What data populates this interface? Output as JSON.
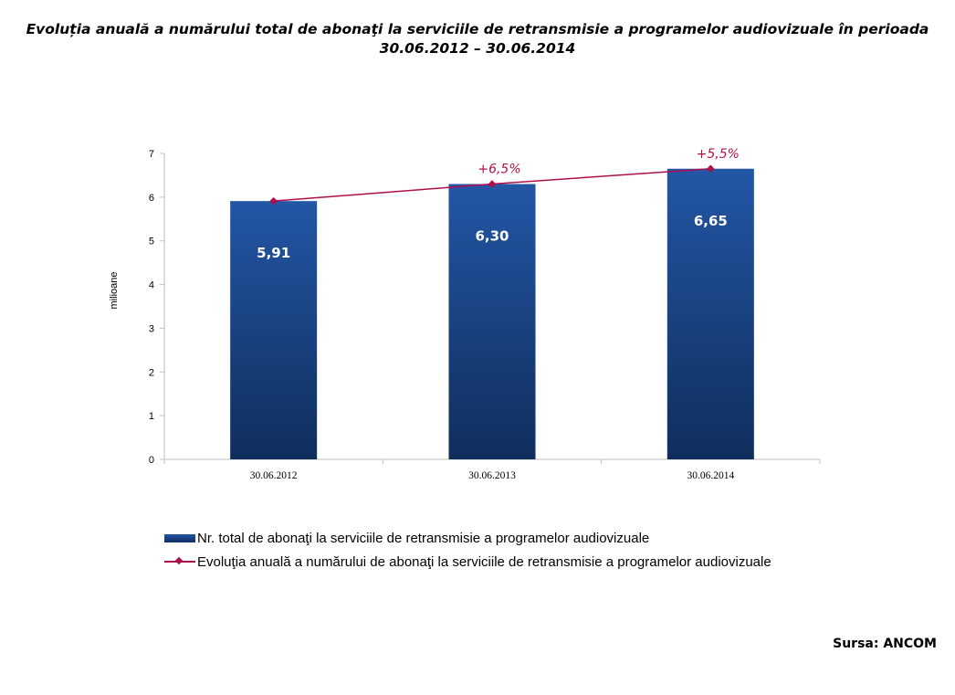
{
  "title": {
    "line1": "Evoluția anuală a numărului total de abonaţi la serviciile de retransmisie a programelor audiovizuale în perioada",
    "line2": "30.06.2012 – 30.06.2014"
  },
  "chart_data": {
    "type": "bar",
    "categories": [
      "30.06.2012",
      "30.06.2013",
      "30.06.2014"
    ],
    "series": [
      {
        "name": "Nr. total de abonaţi la serviciile de retransmisie a programelor audiovizuale",
        "kind": "bar",
        "values": [
          5.91,
          6.3,
          6.65
        ],
        "labels": [
          "5,91",
          "6,30",
          "6,65"
        ],
        "color": "#1c4e96"
      },
      {
        "name": "Evoluţia anuală a numărului de abonaţi la serviciile de retransmisie a programelor audiovizuale",
        "kind": "line",
        "values": [
          5.91,
          6.3,
          6.65
        ],
        "annotations": [
          "",
          "+6,5%",
          "+5,5%"
        ],
        "color": "#b0104a"
      }
    ],
    "ylabel": "milioane",
    "xlabel": "",
    "ylim": [
      0,
      7
    ],
    "yticks": [
      "0",
      "1",
      "2",
      "3",
      "4",
      "5",
      "6",
      "7"
    ],
    "grid": false,
    "legend": "bottom"
  },
  "source": "Sursa: ANCOM"
}
